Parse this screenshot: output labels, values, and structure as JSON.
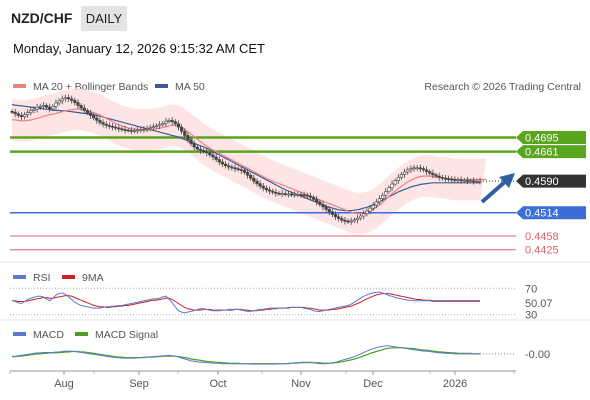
{
  "header": {
    "symbol": "NZD/CHF",
    "timeframe": "DAILY",
    "datetime": "Monday, January 12, 2026 9:15:32 AM CET"
  },
  "legend": {
    "ma20_label": "MA 20 + Bollinger Bands",
    "ma50_label": "MA 50",
    "copyright": "Research © 2026 Trading Central",
    "rsi_label": "RSI",
    "rsi_ma_label": "9MA",
    "macd_label": "MACD",
    "macd_signal_label": "MACD Signal"
  },
  "colors": {
    "ma20": "#f08080",
    "ma50": "#3a5a9a",
    "bollinger": "#fde0e0",
    "resistance": "#5aa51e",
    "support": "#3b6fd6",
    "support_thin": "#e06060",
    "candle_up": "#444444",
    "candle_down": "#444444",
    "current_price_bg": "#333333",
    "rsi": "#5a7ad0",
    "rsi_ma": "#d02020",
    "macd": "#5a7ad0",
    "macd_signal": "#4aa020",
    "arrow": "#2f5fa0"
  },
  "chart_data": [
    {
      "type": "candlestick",
      "title": "NZD/CHF",
      "x_ticks": [
        "Aug",
        "Sep",
        "Oct",
        "Nov",
        "Dec",
        "2026"
      ],
      "ylim": [
        0.4405,
        0.479
      ],
      "overlays": [
        "MA 20 + Bollinger Bands",
        "MA 50"
      ],
      "levels": [
        {
          "label": "0.4695",
          "value": 0.4695,
          "kind": "resistance"
        },
        {
          "label": "0.4661",
          "value": 0.4661,
          "kind": "resistance"
        },
        {
          "label": "0.4590",
          "value": 0.459,
          "kind": "current"
        },
        {
          "label": "0.4514",
          "value": 0.4514,
          "kind": "support"
        },
        {
          "label": "0.4458",
          "value": 0.4458,
          "kind": "support"
        },
        {
          "label": "0.4425",
          "value": 0.4425,
          "kind": "support"
        }
      ],
      "close": [
        0.4756,
        0.4752,
        0.4748,
        0.4745,
        0.475,
        0.4755,
        0.476,
        0.4763,
        0.4768,
        0.477,
        0.4772,
        0.4768,
        0.4764,
        0.477,
        0.4778,
        0.4783,
        0.4788,
        0.4791,
        0.4788,
        0.4784,
        0.4779,
        0.4772,
        0.4766,
        0.476,
        0.4754,
        0.4748,
        0.4742,
        0.4736,
        0.4731,
        0.4727,
        0.4724,
        0.4722,
        0.472,
        0.4718,
        0.4716,
        0.4714,
        0.4713,
        0.4712,
        0.4711,
        0.4712,
        0.4713,
        0.4714,
        0.4715,
        0.4717,
        0.4719,
        0.4721,
        0.4723,
        0.4726,
        0.4729,
        0.4734,
        0.4736,
        0.4733,
        0.4728,
        0.472,
        0.471,
        0.47,
        0.469,
        0.468,
        0.4672,
        0.4667,
        0.4664,
        0.4661,
        0.4658,
        0.4653,
        0.4648,
        0.4642,
        0.4636,
        0.4631,
        0.4627,
        0.4624,
        0.4622,
        0.462,
        0.4618,
        0.4616,
        0.4611,
        0.4604,
        0.4597,
        0.459,
        0.4584,
        0.4578,
        0.4573,
        0.4569,
        0.4566,
        0.4563,
        0.4561,
        0.456,
        0.456,
        0.4559,
        0.4559,
        0.4558,
        0.4558,
        0.4558,
        0.4557,
        0.4556,
        0.4554,
        0.4551,
        0.4546,
        0.454,
        0.4534,
        0.4528,
        0.4522,
        0.4516,
        0.451,
        0.4504,
        0.45,
        0.4496,
        0.4494,
        0.4493,
        0.4494,
        0.4497,
        0.4501,
        0.4506,
        0.4512,
        0.4518,
        0.4525,
        0.4532,
        0.454,
        0.4548,
        0.4556,
        0.4565,
        0.4574,
        0.4583,
        0.4591,
        0.4599,
        0.4606,
        0.4612,
        0.4617,
        0.462,
        0.4622,
        0.4622,
        0.462,
        0.4617,
        0.4613,
        0.4609,
        0.4605,
        0.4602,
        0.4599,
        0.4597,
        0.4596,
        0.4595,
        0.4594,
        0.4593,
        0.4593,
        0.4592,
        0.4592,
        0.4591,
        0.4591,
        0.459,
        0.459,
        0.459
      ],
      "ma20": [
        0.4738,
        0.4737,
        0.4736,
        0.4735,
        0.4735,
        0.4736,
        0.4737,
        0.4739,
        0.4741,
        0.4743,
        0.4746,
        0.4748,
        0.475,
        0.4751,
        0.4753,
        0.4755,
        0.4757,
        0.4759,
        0.4761,
        0.4762,
        0.4763,
        0.4763,
        0.4762,
        0.4761,
        0.4759,
        0.4757,
        0.4755,
        0.4752,
        0.4749,
        0.4745,
        0.4741,
        0.4737,
        0.4733,
        0.4729,
        0.4726,
        0.4723,
        0.472,
        0.4718,
        0.4716,
        0.4715,
        0.4714,
        0.4713,
        0.4713,
        0.4713,
        0.4714,
        0.4715,
        0.4716,
        0.4717,
        0.4719,
        0.4721,
        0.4723,
        0.4724,
        0.4724,
        0.4722,
        0.4719,
        0.4714,
        0.4709,
        0.4703,
        0.4697,
        0.4691,
        0.4685,
        0.4679,
        0.4674,
        0.4669,
        0.4665,
        0.4661,
        0.4657,
        0.4653,
        0.4649,
        0.4645,
        0.4641,
        0.4637,
        0.4633,
        0.4629,
        0.4625,
        0.4621,
        0.4617,
        0.4613,
        0.4609,
        0.4605,
        0.4601,
        0.4597,
        0.4593,
        0.459,
        0.4587,
        0.4584,
        0.4581,
        0.4578,
        0.4575,
        0.4572,
        0.4569,
        0.4566,
        0.4563,
        0.456,
        0.4557,
        0.4554,
        0.4551,
        0.4548,
        0.4545,
        0.4542,
        0.4539,
        0.4536,
        0.4533,
        0.453,
        0.4527,
        0.4524,
        0.4521,
        0.4518,
        0.4515,
        0.4513,
        0.4512,
        0.4512,
        0.4513,
        0.4515,
        0.4518,
        0.4522,
        0.4527,
        0.4533,
        0.4539,
        0.4546,
        0.4553,
        0.456,
        0.4566,
        0.4572,
        0.4578,
        0.4583,
        0.4588,
        0.4592,
        0.4596,
        0.4599,
        0.4601,
        0.4602,
        0.4602,
        0.4602,
        0.4601,
        0.46,
        0.4599,
        0.4598,
        0.4597,
        0.4596,
        0.4595,
        0.4594,
        0.4594,
        0.4594,
        0.4594,
        0.4594,
        0.4594,
        0.4594,
        0.4594,
        0.4594,
        0.4594,
        0.4594
      ],
      "ma50": [
        0.4774,
        0.4773,
        0.4772,
        0.4771,
        0.477,
        0.4769,
        0.4768,
        0.4767,
        0.4766,
        0.4765,
        0.4764,
        0.4763,
        0.4762,
        0.4761,
        0.476,
        0.476,
        0.4759,
        0.4759,
        0.4758,
        0.4757,
        0.4756,
        0.4755,
        0.4754,
        0.4753,
        0.4752,
        0.4751,
        0.475,
        0.4748,
        0.4746,
        0.4744,
        0.4742,
        0.474,
        0.4738,
        0.4736,
        0.4734,
        0.4732,
        0.473,
        0.4728,
        0.4726,
        0.4724,
        0.4722,
        0.472,
        0.4718,
        0.4716,
        0.4714,
        0.4712,
        0.471,
        0.4708,
        0.4706,
        0.4704,
        0.4702,
        0.47,
        0.4698,
        0.4696,
        0.4693,
        0.469,
        0.4687,
        0.4684,
        0.4681,
        0.4678,
        0.4675,
        0.4672,
        0.4669,
        0.4665,
        0.4661,
        0.4657,
        0.4653,
        0.4649,
        0.4645,
        0.4641,
        0.4637,
        0.4633,
        0.4629,
        0.4625,
        0.4621,
        0.4617,
        0.4613,
        0.4609,
        0.4605,
        0.4601,
        0.4597,
        0.4593,
        0.4589,
        0.4585,
        0.4581,
        0.4577,
        0.4573,
        0.4569,
        0.4566,
        0.4563,
        0.456,
        0.4557,
        0.4554,
        0.4551,
        0.4548,
        0.4545,
        0.4542,
        0.4539,
        0.4536,
        0.4533,
        0.453,
        0.4527,
        0.4525,
        0.4523,
        0.4521,
        0.452,
        0.4519,
        0.4519,
        0.4519,
        0.452,
        0.4521,
        0.4523,
        0.4525,
        0.4527,
        0.453,
        0.4533,
        0.4536,
        0.454,
        0.4544,
        0.4548,
        0.4552,
        0.4556,
        0.456,
        0.4564,
        0.4567,
        0.457,
        0.4573,
        0.4576,
        0.4578,
        0.458,
        0.4582,
        0.4583,
        0.4584,
        0.4585,
        0.4586,
        0.4586,
        0.4586,
        0.4586,
        0.4586,
        0.4586,
        0.4586,
        0.4586,
        0.4586,
        0.4586,
        0.4586,
        0.4586,
        0.4586,
        0.4586,
        0.4586,
        0.4586
      ],
      "bb_width": 0.005
    },
    {
      "type": "line",
      "title": "RSI",
      "series_labels": [
        "RSI",
        "9MA"
      ],
      "y_ticks": [
        70,
        30
      ],
      "ylim": [
        25,
        75
      ],
      "current_value_label": "50.07",
      "rsi": [
        52,
        50,
        48,
        47,
        50,
        53,
        55,
        56,
        58,
        58,
        57,
        54,
        51,
        55,
        60,
        62,
        63,
        61,
        57,
        53,
        49,
        46,
        44,
        43,
        42,
        41,
        40,
        40,
        40,
        41,
        42,
        42,
        43,
        43,
        44,
        44,
        45,
        46,
        47,
        48,
        49,
        50,
        51,
        52,
        53,
        54,
        54,
        55,
        57,
        58,
        54,
        48,
        42,
        36,
        34,
        33,
        34,
        35,
        36,
        38,
        39,
        39,
        38,
        37,
        36,
        36,
        36,
        37,
        37,
        38,
        38,
        38,
        38,
        37,
        36,
        35,
        35,
        36,
        37,
        38,
        38,
        39,
        40,
        40,
        40,
        40,
        40,
        40,
        41,
        41,
        41,
        41,
        41,
        40,
        39,
        38,
        36,
        35,
        35,
        36,
        37,
        38,
        39,
        40,
        41,
        42,
        43,
        44,
        46,
        49,
        52,
        55,
        58,
        60,
        62,
        63,
        64,
        64,
        63,
        61,
        59,
        58,
        56,
        55,
        54,
        53,
        52,
        52,
        51,
        51,
        51,
        51,
        51,
        51,
        50,
        50,
        50,
        50,
        50,
        50,
        50,
        50,
        50,
        50,
        50,
        50,
        50,
        50,
        50,
        50
      ],
      "rsi_ma": [
        51,
        51,
        50,
        50,
        50,
        51,
        52,
        53,
        54,
        55,
        56,
        56,
        55,
        55,
        56,
        57,
        58,
        59,
        59,
        58,
        56,
        54,
        52,
        50,
        48,
        46,
        44,
        43,
        42,
        42,
        41,
        41,
        42,
        42,
        43,
        43,
        44,
        44,
        45,
        46,
        47,
        48,
        49,
        50,
        51,
        52,
        52,
        53,
        54,
        55,
        55,
        53,
        50,
        47,
        44,
        41,
        39,
        38,
        37,
        37,
        37,
        38,
        38,
        38,
        37,
        37,
        37,
        37,
        37,
        37,
        37,
        38,
        38,
        38,
        37,
        37,
        36,
        36,
        36,
        37,
        37,
        38,
        38,
        39,
        39,
        40,
        40,
        40,
        40,
        41,
        41,
        41,
        41,
        41,
        40,
        40,
        39,
        38,
        37,
        37,
        37,
        37,
        38,
        38,
        39,
        40,
        41,
        42,
        43,
        45,
        47,
        49,
        52,
        54,
        56,
        58,
        60,
        61,
        62,
        62,
        62,
        61,
        60,
        59,
        58,
        57,
        56,
        55,
        54,
        53,
        53,
        52,
        52,
        52,
        51,
        51,
        51,
        51,
        51,
        51,
        51,
        51,
        51,
        51,
        51,
        51,
        51,
        51,
        51,
        51
      ]
    },
    {
      "type": "line",
      "title": "MACD",
      "series_labels": [
        "MACD",
        "MACD Signal"
      ],
      "current_value_label": "-0.00",
      "macd": [
        0.0001,
        0.0001,
        0.0002,
        0.0003,
        0.0004,
        0.0005,
        0.0006,
        0.0007,
        0.0008,
        0.0008,
        0.0009,
        0.0009,
        0.0009,
        0.0009,
        0.001,
        0.001,
        0.0011,
        0.0012,
        0.0012,
        0.0012,
        0.0011,
        0.001,
        0.0009,
        0.0008,
        0.0007,
        0.0006,
        0.0005,
        0.0004,
        0.0003,
        0.0002,
        0.0001,
        0.0,
        -0.0001,
        -0.0002,
        -0.0002,
        -0.0003,
        -0.0003,
        -0.0003,
        -0.0003,
        -0.0003,
        -0.0002,
        -0.0002,
        -0.0001,
        -0.0001,
        0.0,
        0.0,
        0.0001,
        0.0001,
        0.0002,
        0.0002,
        0.0003,
        0.0002,
        0.0001,
        -0.0001,
        -0.0003,
        -0.0005,
        -0.0007,
        -0.0009,
        -0.001,
        -0.0011,
        -0.0012,
        -0.0012,
        -0.0013,
        -0.0013,
        -0.0014,
        -0.0014,
        -0.0014,
        -0.0015,
        -0.0015,
        -0.0015,
        -0.0015,
        -0.0015,
        -0.0015,
        -0.0015,
        -0.0015,
        -0.0015,
        -0.0016,
        -0.0016,
        -0.0016,
        -0.0016,
        -0.0016,
        -0.0016,
        -0.0016,
        -0.0016,
        -0.0016,
        -0.0015,
        -0.0015,
        -0.0015,
        -0.0014,
        -0.0014,
        -0.0013,
        -0.0013,
        -0.0012,
        -0.0012,
        -0.0012,
        -0.0012,
        -0.0013,
        -0.0014,
        -0.0015,
        -0.0015,
        -0.0015,
        -0.0014,
        -0.0013,
        -0.0012,
        -0.001,
        -0.0008,
        -0.0006,
        -0.0004,
        -0.0002,
        0.0,
        0.0003,
        0.0006,
        0.0009,
        0.0012,
        0.0015,
        0.0017,
        0.0019,
        0.0021,
        0.0022,
        0.0023,
        0.0023,
        0.0022,
        0.0021,
        0.002,
        0.0019,
        0.0018,
        0.0017,
        0.0016,
        0.0015,
        0.0014,
        0.0013,
        0.0012,
        0.0012,
        0.0011,
        0.001,
        0.0009,
        0.0008,
        0.0008,
        0.0007,
        0.0007,
        0.0007,
        0.0006,
        0.0006,
        0.0006,
        0.0006,
        0.0006,
        0.0006,
        0.0006,
        0.0006,
        0.0006
      ],
      "macd_signal": [
        0.0,
        0.0,
        0.0001,
        0.0001,
        0.0002,
        0.0003,
        0.0004,
        0.0005,
        0.0006,
        0.0006,
        0.0007,
        0.0007,
        0.0008,
        0.0008,
        0.0008,
        0.0009,
        0.0009,
        0.001,
        0.001,
        0.0011,
        0.0011,
        0.0011,
        0.001,
        0.001,
        0.0009,
        0.0008,
        0.0007,
        0.0006,
        0.0005,
        0.0004,
        0.0003,
        0.0002,
        0.0001,
        0.0,
        -0.0001,
        -0.0001,
        -0.0002,
        -0.0002,
        -0.0002,
        -0.0002,
        -0.0002,
        -0.0002,
        -0.0002,
        -0.0001,
        -0.0001,
        -0.0001,
        0.0,
        0.0,
        0.0001,
        0.0001,
        0.0001,
        0.0001,
        0.0001,
        0.0,
        -0.0001,
        -0.0002,
        -0.0003,
        -0.0005,
        -0.0006,
        -0.0007,
        -0.0008,
        -0.0009,
        -0.001,
        -0.0011,
        -0.0011,
        -0.0012,
        -0.0012,
        -0.0013,
        -0.0013,
        -0.0014,
        -0.0014,
        -0.0014,
        -0.0014,
        -0.0015,
        -0.0015,
        -0.0015,
        -0.0015,
        -0.0015,
        -0.0015,
        -0.0015,
        -0.0015,
        -0.0015,
        -0.0015,
        -0.0015,
        -0.0015,
        -0.0015,
        -0.0015,
        -0.0015,
        -0.0015,
        -0.0014,
        -0.0014,
        -0.0014,
        -0.0013,
        -0.0013,
        -0.0013,
        -0.0013,
        -0.0013,
        -0.0013,
        -0.0013,
        -0.0014,
        -0.0014,
        -0.0014,
        -0.0014,
        -0.0013,
        -0.0012,
        -0.0011,
        -0.001,
        -0.0008,
        -0.0007,
        -0.0005,
        -0.0003,
        -0.0001,
        0.0002,
        0.0004,
        0.0007,
        0.0009,
        0.0011,
        0.0013,
        0.0015,
        0.0017,
        0.0018,
        0.0019,
        0.0019,
        0.0019,
        0.0019,
        0.0019,
        0.0018,
        0.0018,
        0.0017,
        0.0016,
        0.0015,
        0.0014,
        0.0014,
        0.0013,
        0.0012,
        0.0011,
        0.001,
        0.001,
        0.0009,
        0.0009,
        0.0008,
        0.0008,
        0.0007,
        0.0007,
        0.0007,
        0.0007,
        0.0007,
        0.0006,
        0.0006,
        0.0006
      ]
    }
  ]
}
